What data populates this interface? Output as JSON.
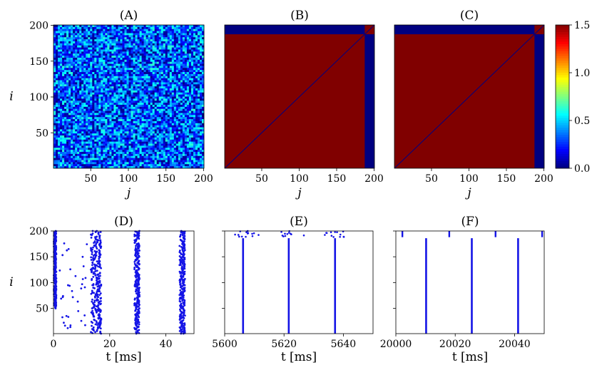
{
  "chart_data": [
    {
      "type": "heatmap",
      "title": "(A)",
      "xlabel": "j",
      "ylabel": "i",
      "xlim": [
        1,
        200
      ],
      "ylim": [
        1,
        200
      ],
      "xticks": [
        50,
        100,
        150,
        200
      ],
      "yticks": [
        50,
        100,
        150,
        200
      ],
      "pattern": "random noise, values mostly 0.1–0.7 with diagonal streaks",
      "value_range": [
        0.0,
        0.7
      ]
    },
    {
      "type": "heatmap",
      "title": "(B)",
      "xlabel": "j",
      "xlim": [
        1,
        200
      ],
      "ylim": [
        1,
        200
      ],
      "xticks": [
        50,
        100,
        150,
        200
      ],
      "blocks": [
        {
          "i_range": [
            1,
            187
          ],
          "j_range": [
            1,
            187
          ],
          "value": 1.5
        },
        {
          "i_range": [
            188,
            200
          ],
          "j_range": [
            188,
            200
          ],
          "value": 1.5
        },
        {
          "rest": true,
          "value": 0.0
        }
      ],
      "diagonal_value": 0.0
    },
    {
      "type": "heatmap",
      "title": "(C)",
      "xlabel": "j",
      "xlim": [
        1,
        200
      ],
      "ylim": [
        1,
        200
      ],
      "xticks": [
        50,
        100,
        150,
        200
      ],
      "blocks": [
        {
          "i_range": [
            1,
            187
          ],
          "j_range": [
            1,
            187
          ],
          "value": 1.5
        },
        {
          "i_range": [
            188,
            200
          ],
          "j_range": [
            188,
            200
          ],
          "value": 1.5
        },
        {
          "rest": true,
          "value": 0.0
        }
      ],
      "diagonal_value": 0.0,
      "colorbar": {
        "min": 0.0,
        "max": 1.5,
        "ticks": [
          "0.0",
          "0.5",
          "1.0",
          "1.5"
        ],
        "colormap": "jet"
      }
    },
    {
      "type": "scatter",
      "title": "(D)",
      "xlabel": "t [ms]",
      "ylabel": "i",
      "xlim": [
        0,
        50
      ],
      "ylim": [
        1,
        200
      ],
      "xticks": [
        0,
        20,
        40
      ],
      "yticks": [
        50,
        100,
        150,
        200
      ],
      "color": "#1414e6",
      "bursts": [
        {
          "t_start": 0.1,
          "t_end": 1.0,
          "i_min": 50,
          "i_max": 200,
          "kind": "scattered"
        },
        {
          "t_start": 13.2,
          "t_end": 17.0,
          "i_min": 1,
          "i_max": 200,
          "kind": "scattered"
        },
        {
          "t_start": 28.8,
          "t_end": 30.6,
          "i_min": 1,
          "i_max": 200,
          "kind": "scattered"
        },
        {
          "t_start": 44.8,
          "t_end": 46.8,
          "i_min": 1,
          "i_max": 200,
          "kind": "scattered"
        }
      ],
      "stray_spikes_window": [
        2.0,
        12.0
      ]
    },
    {
      "type": "scatter",
      "title": "(E)",
      "xlabel": "t [ms]",
      "xlim": [
        5600,
        5650
      ],
      "ylim": [
        1,
        200
      ],
      "xticks": [
        5600,
        5620,
        5640
      ],
      "color": "#1414e6",
      "sync_lines": [
        {
          "t": 5606.2,
          "i_min": 1,
          "i_max": 186
        },
        {
          "t": 5621.6,
          "i_min": 1,
          "i_max": 186
        },
        {
          "t": 5637.2,
          "i_min": 1,
          "i_max": 186
        }
      ],
      "top_cluster_spikes_i_range": [
        188,
        200
      ]
    },
    {
      "type": "scatter",
      "title": "(F)",
      "xlabel": "t [ms]",
      "xlim": [
        20000,
        20050
      ],
      "ylim": [
        1,
        200
      ],
      "xticks": [
        20000,
        20020,
        20040
      ],
      "color": "#1414e6",
      "sync_lines": [
        {
          "t": 20010.2,
          "i_min": 1,
          "i_max": 186
        },
        {
          "t": 20025.6,
          "i_min": 1,
          "i_max": 186
        },
        {
          "t": 20041.2,
          "i_min": 1,
          "i_max": 186
        }
      ],
      "top_cluster_lines": [
        {
          "t": 20002.2,
          "i_min": 188,
          "i_max": 200
        },
        {
          "t": 20018.0,
          "i_min": 188,
          "i_max": 200
        },
        {
          "t": 20033.6,
          "i_min": 188,
          "i_max": 200
        },
        {
          "t": 20049.3,
          "i_min": 188,
          "i_max": 200
        }
      ]
    }
  ]
}
